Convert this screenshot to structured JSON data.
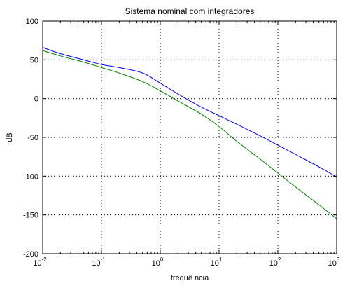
{
  "chart_data": {
    "type": "line",
    "title": "Sistema nominal com integradores",
    "xlabel": "frequê ncia",
    "ylabel": "dB",
    "xscale": "log",
    "xlim": [
      0.01,
      1000
    ],
    "ylim": [
      -200,
      100
    ],
    "grid": true,
    "x_ticks": [
      {
        "base": "10",
        "exp": "-2"
      },
      {
        "base": "10",
        "exp": "-1"
      },
      {
        "base": "10",
        "exp": "0"
      },
      {
        "base": "10",
        "exp": "1"
      },
      {
        "base": "10",
        "exp": "2"
      },
      {
        "base": "10",
        "exp": "3"
      }
    ],
    "y_ticks": [
      "100",
      "50",
      "0",
      "-50",
      "-100",
      "-150",
      "-200"
    ],
    "series": [
      {
        "color": "#0000ff",
        "x": [
          0.01,
          0.02,
          0.05,
          0.1,
          0.2,
          0.5,
          1,
          2,
          5,
          10,
          20,
          50,
          100,
          200,
          500,
          1000
        ],
        "y": [
          66,
          58,
          50,
          44,
          40,
          33,
          20,
          6,
          -11,
          -22,
          -33,
          -48,
          -60,
          -72,
          -88,
          -101
        ]
      },
      {
        "color": "#008000",
        "x": [
          0.01,
          0.02,
          0.05,
          0.1,
          0.2,
          0.5,
          1,
          2,
          5,
          10,
          20,
          50,
          100,
          200,
          500,
          1000
        ],
        "y": [
          62,
          55,
          47,
          40,
          33,
          22,
          10,
          -3,
          -20,
          -36,
          -55,
          -78,
          -96,
          -114,
          -137,
          -155
        ]
      }
    ]
  }
}
